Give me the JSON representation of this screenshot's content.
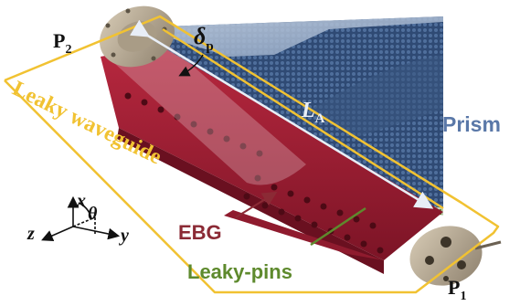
{
  "labels": {
    "p2": "P",
    "p2_sub": "2",
    "p1": "P",
    "p1_sub": "1",
    "delta": "δ",
    "delta_sub": "p",
    "length": "L",
    "length_sub": "A",
    "prism": "Prism",
    "leaky_waveguide": "Leaky waveguide",
    "ebg": "EBG",
    "leaky_pins": "Leaky-pins",
    "axis_x": "x",
    "axis_y": "y",
    "axis_z": "z",
    "axis_theta": "θ"
  },
  "colors": {
    "outline_yellow": "#f1c232",
    "ebg_red": "#a32035",
    "ebg_label": "#8b2a35",
    "prism_blue": "#3e5a86",
    "prism_label": "#5a78a8",
    "pins_green": "#5e8a2d",
    "flange_gray": "#b9ab95",
    "arrow_white": "#e8eef7"
  }
}
